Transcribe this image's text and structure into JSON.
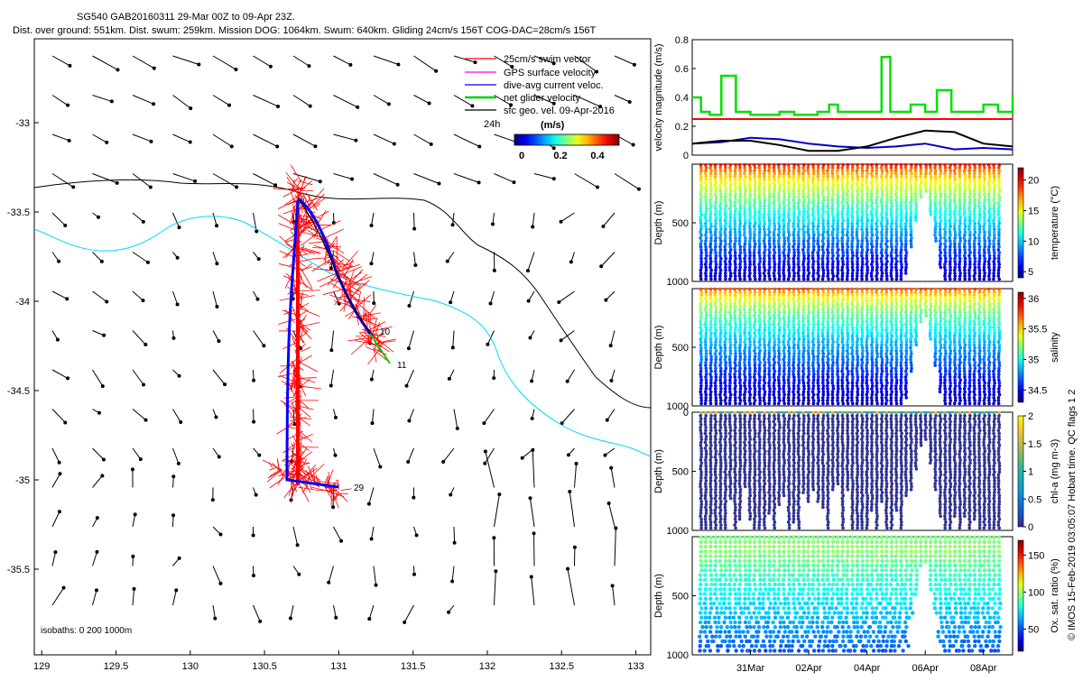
{
  "header": {
    "title_line1": "SG540 GAB20160311 29-Mar 00Z to 09-Apr 23Z.",
    "title_line2": "Dist. over ground: 551km. Dist. swum: 259km. Mission DOG: 1064km. Swum: 640km. Gliding 24cm/s 156T COG-DAC=28cm/s 156T"
  },
  "credit": "© IMOS 15-Feb-2019 03:05:07 Hobart time. QC flags 1  2",
  "map": {
    "x_ticks": [
      "129",
      "129.5",
      "130",
      "130.5",
      "131",
      "131.5",
      "132",
      "132.5",
      "133"
    ],
    "y_ticks": [
      "-33",
      "-33.5",
      "-34",
      "-34.5",
      "-35",
      "-35.5"
    ],
    "xlim": [
      128.95,
      133.1
    ],
    "ylim": [
      -35.98,
      -32.53
    ],
    "legend": {
      "items": [
        {
          "label": "25cm/s swim vector",
          "color": "#ff0000"
        },
        {
          "label": "GPS surface velocity",
          "color": "#ff00ff"
        },
        {
          "label": "dive-avg current veloc.",
          "color": "#0000ff"
        },
        {
          "label": "net glider velocity",
          "color": "#00d000"
        },
        {
          "label": "sfc geo. vel. 09-Apr-2016",
          "color": "#000000"
        }
      ],
      "scale_label": "24h",
      "units": "(m/s)",
      "colorbar_ticks": [
        "0",
        "0.2",
        "0.4"
      ]
    },
    "isobaths_label": "isobaths: 0   200   1000m",
    "track_labels": [
      "10",
      "11",
      "29"
    ],
    "colors": {
      "isobath_200": "#00d8ff",
      "isobath_1000": "#000000",
      "track": "#0000ff",
      "swim": "#ff0000",
      "net": "#00d000"
    }
  },
  "time_axis": {
    "ticks": [
      "31Mar",
      "02Apr",
      "04Apr",
      "06Apr",
      "08Apr"
    ],
    "tick_days": [
      2,
      4,
      6,
      8,
      10
    ],
    "xlim_days": [
      0,
      11
    ]
  },
  "chart_data": [
    {
      "type": "line",
      "ylabel": "velocity magnitude (m/s)",
      "ylim": [
        0,
        0.8
      ],
      "y_ticks": [
        "0",
        "0.2",
        "0.4",
        "0.6",
        "0.8"
      ],
      "series": [
        {
          "color": "#00e000",
          "x": [
            0,
            0.3,
            0.6,
            0.9,
            1.0,
            1.5,
            2.0,
            2.5,
            3.0,
            3.5,
            4.0,
            4.3,
            4.7,
            5.0,
            5.5,
            6.0,
            6.5,
            6.8,
            7.0,
            7.5,
            8.0,
            8.4,
            8.9,
            9.5,
            10.0,
            10.5,
            11.0
          ],
          "values": [
            0.4,
            0.3,
            0.28,
            0.28,
            0.55,
            0.3,
            0.28,
            0.28,
            0.3,
            0.28,
            0.28,
            0.3,
            0.35,
            0.3,
            0.3,
            0.3,
            0.68,
            0.3,
            0.3,
            0.35,
            0.3,
            0.45,
            0.3,
            0.3,
            0.35,
            0.3,
            0.42
          ]
        },
        {
          "color": "#ff0000",
          "x": [
            0,
            11
          ],
          "values": [
            0.25,
            0.25
          ]
        },
        {
          "color": "#0000c0",
          "x": [
            0,
            1,
            2,
            3,
            4,
            5,
            6,
            7,
            8,
            9,
            10,
            11
          ],
          "values": [
            0.08,
            0.09,
            0.12,
            0.11,
            0.08,
            0.06,
            0.05,
            0.06,
            0.08,
            0.04,
            0.05,
            0.04
          ]
        },
        {
          "color": "#000000",
          "x": [
            0,
            1,
            2,
            3,
            4,
            5,
            6,
            7,
            8,
            9,
            10,
            11
          ],
          "values": [
            0.08,
            0.1,
            0.1,
            0.07,
            0.03,
            0.03,
            0.06,
            0.12,
            0.17,
            0.16,
            0.08,
            0.06
          ]
        }
      ]
    },
    {
      "type": "scatter",
      "ylabel": "Depth (m)",
      "clabel": "temperature (°C)",
      "ylim": [
        1000,
        0
      ],
      "y_ticks": [
        "500",
        "1000"
      ],
      "clim": [
        4,
        22
      ],
      "c_ticks": [
        "5",
        "10",
        "15",
        "20"
      ]
    },
    {
      "type": "scatter",
      "ylabel": "Depth (m)",
      "clabel": "salinity",
      "ylim": [
        1000,
        0
      ],
      "y_ticks": [
        "500",
        "1000"
      ],
      "clim": [
        34.3,
        36.1
      ],
      "c_ticks": [
        "34.5",
        "35",
        "35.5",
        "36"
      ]
    },
    {
      "type": "scatter",
      "ylabel": "Depth (m)",
      "clabel": "chl-a (mg m-3)",
      "ylim": [
        1000,
        0
      ],
      "y_ticks": [
        "0",
        "500",
        "1000"
      ],
      "clim": [
        0,
        2
      ],
      "c_ticks": [
        "0",
        "0.5",
        "1",
        "1.5",
        "2"
      ]
    },
    {
      "type": "scatter",
      "ylabel": "Depth (m)",
      "clabel": "Ox. sat. ratio (%)",
      "ylim": [
        1000,
        0
      ],
      "y_ticks": [
        "500",
        "1000"
      ],
      "clim": [
        20,
        170
      ],
      "c_ticks": [
        "50",
        "100",
        "150"
      ]
    }
  ]
}
